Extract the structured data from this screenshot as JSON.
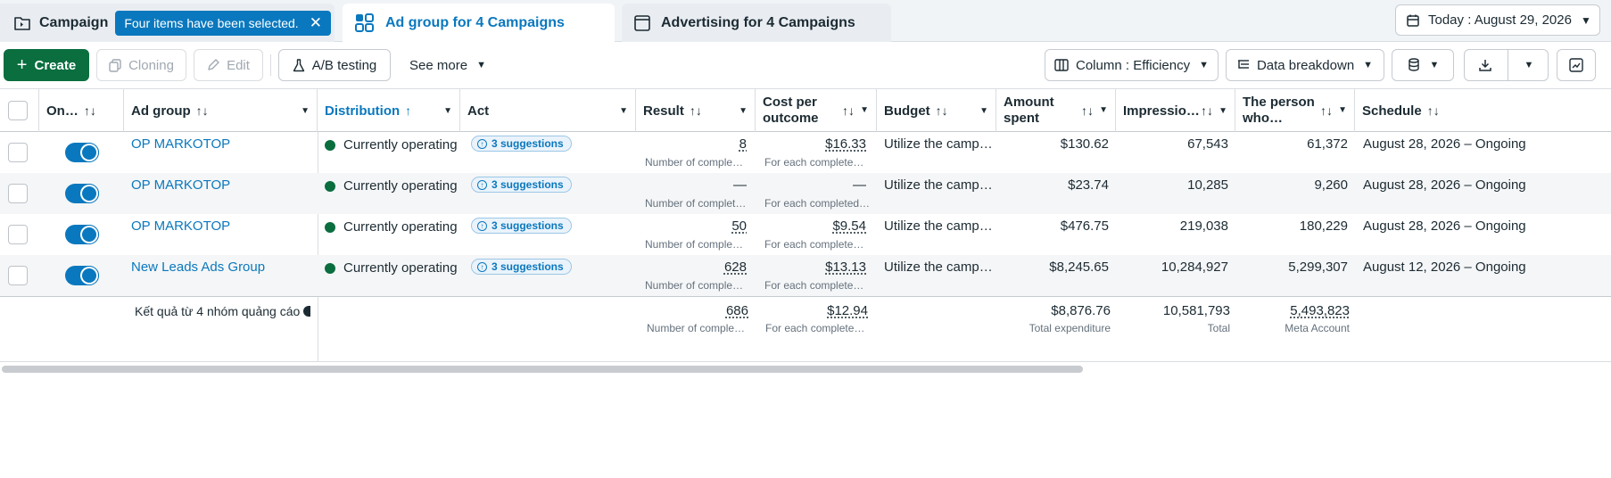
{
  "tabs": {
    "campaign": {
      "label": "Campaign",
      "selection_chip": "Four items have been selected."
    },
    "adgroup": {
      "label": "Ad group for 4 Campaigns"
    },
    "ads": {
      "label": "Advertising for 4 Campaigns"
    },
    "date": "Today : August 29, 2026"
  },
  "toolbar": {
    "create": "Create",
    "cloning": "Cloning",
    "edit": "Edit",
    "ab_testing": "A/B testing",
    "see_more": "See more",
    "columns": "Column : Efficiency",
    "breakdown": "Data breakdown"
  },
  "columns": {
    "on_off": "On…",
    "ad_group": "Ad group",
    "distribution": "Distribution",
    "act": "Act",
    "result": "Result",
    "cost_line1": "Cost per",
    "cost_line2": "outcome",
    "budget": "Budget",
    "amount_line1": "Amount",
    "amount_line2": "spent",
    "impressions": "Impressio…",
    "reach_line1": "The person",
    "reach_line2": "who…",
    "schedule": "Schedule"
  },
  "rows": [
    {
      "name": "OP MARKOTOP",
      "status": "Currently operating",
      "suggestions": "3 suggestions",
      "result": "8",
      "result_sub": "Number of comple…",
      "cost": "$16.33",
      "cost_sub": "For each complete…",
      "budget": "Utilize the camp…",
      "spent": "$130.62",
      "impressions": "67,543",
      "reach": "61,372",
      "schedule": "August 28, 2026 – Ongoing"
    },
    {
      "name": "OP MARKOTOP",
      "status": "Currently operating",
      "suggestions": "3 suggestions",
      "result": "—",
      "result_sub": "Number of complet…",
      "cost": "—",
      "cost_sub": "For each completed…",
      "budget": "Utilize the camp…",
      "spent": "$23.74",
      "impressions": "10,285",
      "reach": "9,260",
      "schedule": "August 28, 2026 – Ongoing"
    },
    {
      "name": "OP MARKOTOP",
      "status": "Currently operating",
      "suggestions": "3 suggestions",
      "result": "50",
      "result_sub": "Number of comple…",
      "cost": "$9.54",
      "cost_sub": "For each complete…",
      "budget": "Utilize the camp…",
      "spent": "$476.75",
      "impressions": "219,038",
      "reach": "180,229",
      "schedule": "August 28, 2026 – Ongoing"
    },
    {
      "name": "New Leads Ads Group",
      "status": "Currently operating",
      "suggestions": "3 suggestions",
      "result": "628",
      "result_sub": "Number of comple…",
      "cost": "$13.13",
      "cost_sub": "For each complete…",
      "budget": "Utilize the camp…",
      "spent": "$8,245.65",
      "impressions": "10,284,927",
      "reach": "5,299,307",
      "schedule": "August 12, 2026 – Ongoing"
    }
  ],
  "summary": {
    "label": "Kết quả từ 4 nhóm quảng cáo",
    "result": "686",
    "result_sub": "Number of comple…",
    "cost": "$12.94",
    "cost_sub": "For each complete…",
    "spent": "$8,876.76",
    "spent_sub": "Total expenditure",
    "impressions": "10,581,793",
    "impressions_sub": "Total",
    "reach": "5,493,823",
    "reach_sub": "Meta Account"
  },
  "colors": {
    "accent": "#0a78be",
    "create_green": "#0a6e3f",
    "status_green": "#0a6e3f"
  }
}
